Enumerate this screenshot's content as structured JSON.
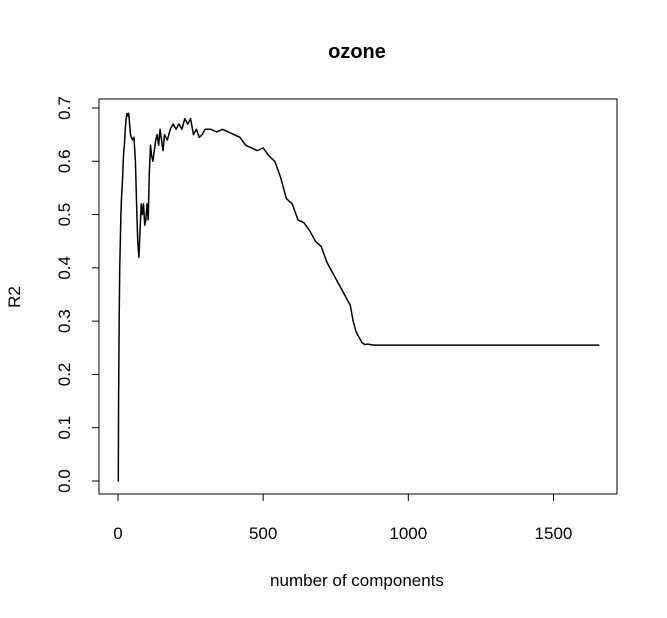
{
  "chart_data": {
    "type": "line",
    "title": "ozone",
    "xlabel": "number of components",
    "ylabel": "R2",
    "xlim": [
      0,
      1660
    ],
    "ylim": [
      0.0,
      0.7
    ],
    "x_ticks": [
      0,
      500,
      1000,
      1500
    ],
    "x_tick_labels": [
      "0",
      "500",
      "1000",
      "1500"
    ],
    "y_ticks": [
      0.0,
      0.1,
      0.2,
      0.3,
      0.4,
      0.5,
      0.6,
      0.7
    ],
    "y_tick_labels": [
      "0.0",
      "0.1",
      "0.2",
      "0.3",
      "0.4",
      "0.5",
      "0.6",
      "0.7"
    ],
    "grid": false,
    "line_color": "#000000",
    "series": [
      {
        "x": [
          1,
          2,
          4,
          6,
          8,
          10,
          12,
          14,
          16,
          18,
          20,
          22,
          25,
          28,
          31,
          34,
          37,
          40,
          43,
          46,
          50,
          55,
          60,
          64,
          68,
          72,
          76,
          80,
          84,
          88,
          92,
          96,
          100,
          104,
          108,
          112,
          116,
          120,
          125,
          130,
          135,
          140,
          145,
          150,
          155,
          160,
          170,
          180,
          190,
          200,
          210,
          220,
          230,
          240,
          250,
          260,
          270,
          280,
          290,
          300,
          320,
          340,
          360,
          380,
          400,
          420,
          440,
          460,
          480,
          500,
          520,
          540,
          560,
          580,
          600,
          620,
          640,
          660,
          680,
          700,
          720,
          740,
          760,
          780,
          800,
          810,
          820,
          830,
          840,
          850,
          860,
          880,
          900,
          950,
          1000,
          1100,
          1200,
          1300,
          1400,
          1500,
          1600,
          1656
        ],
        "y": [
          0.0,
          0.15,
          0.3,
          0.4,
          0.45,
          0.5,
          0.53,
          0.55,
          0.57,
          0.6,
          0.62,
          0.63,
          0.66,
          0.68,
          0.69,
          0.685,
          0.69,
          0.67,
          0.65,
          0.645,
          0.64,
          0.645,
          0.6,
          0.52,
          0.45,
          0.42,
          0.47,
          0.52,
          0.5,
          0.52,
          0.48,
          0.49,
          0.52,
          0.49,
          0.58,
          0.63,
          0.61,
          0.6,
          0.62,
          0.64,
          0.65,
          0.63,
          0.66,
          0.64,
          0.62,
          0.65,
          0.64,
          0.66,
          0.67,
          0.66,
          0.67,
          0.66,
          0.68,
          0.67,
          0.68,
          0.65,
          0.66,
          0.645,
          0.65,
          0.66,
          0.66,
          0.655,
          0.66,
          0.655,
          0.65,
          0.645,
          0.63,
          0.625,
          0.62,
          0.625,
          0.61,
          0.6,
          0.57,
          0.53,
          0.52,
          0.49,
          0.485,
          0.47,
          0.45,
          0.44,
          0.41,
          0.39,
          0.37,
          0.35,
          0.33,
          0.3,
          0.28,
          0.27,
          0.26,
          0.256,
          0.257,
          0.255,
          0.255,
          0.255,
          0.255,
          0.255,
          0.255,
          0.255,
          0.255,
          0.255,
          0.255,
          0.255
        ]
      }
    ]
  }
}
